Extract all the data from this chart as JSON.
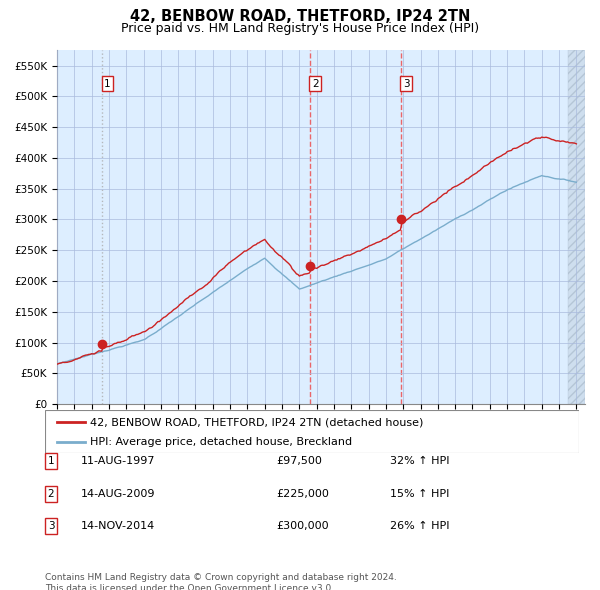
{
  "title": "42, BENBOW ROAD, THETFORD, IP24 2TN",
  "subtitle": "Price paid vs. HM Land Registry's House Price Index (HPI)",
  "yticks": [
    0,
    50000,
    100000,
    150000,
    200000,
    250000,
    300000,
    350000,
    400000,
    450000,
    500000,
    550000
  ],
  "ytick_labels": [
    "£0",
    "£50K",
    "£100K",
    "£150K",
    "£200K",
    "£250K",
    "£300K",
    "£350K",
    "£400K",
    "£450K",
    "£500K",
    "£550K"
  ],
  "xmin": 1995.0,
  "xmax": 2025.5,
  "ymin": 0,
  "ymax": 575000,
  "sale_dates": [
    1997.614,
    2009.614,
    2014.872
  ],
  "sale_prices": [
    97500,
    225000,
    300000
  ],
  "sale_labels": [
    "1",
    "2",
    "3"
  ],
  "red_line_color": "#cc2222",
  "blue_line_color": "#7aadcc",
  "sale1_vline_color": "#aaaaaa",
  "sale23_vline_color": "#ee4444",
  "background_color": "#ddeeff",
  "hatch_color": "#bbccdd",
  "legend_entries": [
    "42, BENBOW ROAD, THETFORD, IP24 2TN (detached house)",
    "HPI: Average price, detached house, Breckland"
  ],
  "table_rows": [
    [
      "1",
      "11-AUG-1997",
      "£97,500",
      "32% ↑ HPI"
    ],
    [
      "2",
      "14-AUG-2009",
      "£225,000",
      "15% ↑ HPI"
    ],
    [
      "3",
      "14-NOV-2014",
      "£300,000",
      "26% ↑ HPI"
    ]
  ],
  "footer": "Contains HM Land Registry data © Crown copyright and database right 2024.\nThis data is licensed under the Open Government Licence v3.0.",
  "title_fontsize": 10.5,
  "subtitle_fontsize": 9,
  "tick_fontsize": 7.5,
  "legend_fontsize": 8,
  "table_fontsize": 8,
  "footer_fontsize": 6.5
}
